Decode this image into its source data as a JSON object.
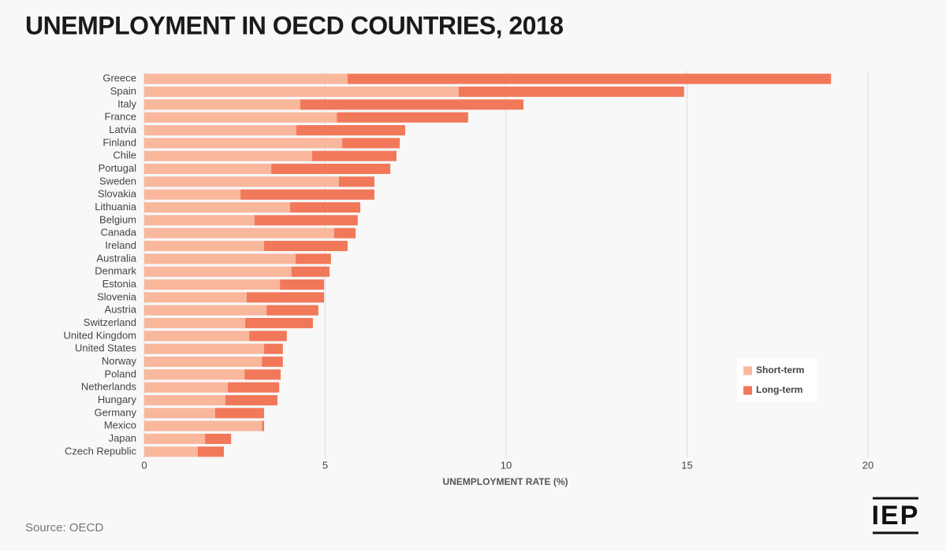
{
  "chart_data": {
    "type": "stacked-bar",
    "orientation": "horizontal",
    "title": "UNEMPLOYMENT IN OECD COUNTRIES, 2018",
    "x_label": "UNEMPLOYMENT RATE (%)",
    "source": "Source: OECD",
    "logo": "IEP",
    "categories": [
      "Greece",
      "Spain",
      "Italy",
      "France",
      "Latvia",
      "Finland",
      "Chile",
      "Portugal",
      "Sweden",
      "Slovakia",
      "Lithuania",
      "Belgium",
      "Canada",
      "Ireland",
      "Australia",
      "Denmark",
      "Estonia",
      "Slovenia",
      "Austria",
      "Switzerland",
      "United Kingdom",
      "United States",
      "Norway",
      "Poland",
      "Netherlands",
      "Hungary",
      "Germany",
      "Mexico",
      "Japan",
      "Czech Republic"
    ],
    "series": [
      {
        "name": "Short-term",
        "color": "#f9b79c",
        "values": [
          5.62,
          8.69,
          4.31,
          5.32,
          4.2,
          5.47,
          4.64,
          3.51,
          5.38,
          2.66,
          4.03,
          3.05,
          5.25,
          3.31,
          4.18,
          4.07,
          3.75,
          2.83,
          3.38,
          2.79,
          2.9,
          3.31,
          3.25,
          2.77,
          2.31,
          2.24,
          1.96,
          3.25,
          1.68,
          1.48
        ]
      },
      {
        "name": "Long-term",
        "color": "#f2785a",
        "values": [
          13.36,
          6.23,
          6.17,
          3.63,
          3.01,
          1.59,
          2.33,
          3.29,
          0.98,
          3.7,
          1.94,
          2.85,
          0.59,
          2.31,
          0.98,
          1.05,
          1.22,
          2.14,
          1.43,
          1.87,
          1.04,
          0.52,
          0.58,
          1.0,
          1.42,
          1.44,
          1.35,
          0.06,
          0.72,
          0.72
        ]
      }
    ],
    "xlim": [
      0,
      20
    ],
    "xticks": [
      0,
      5,
      10,
      15,
      20
    ],
    "grid": true,
    "legend": "lower right"
  }
}
